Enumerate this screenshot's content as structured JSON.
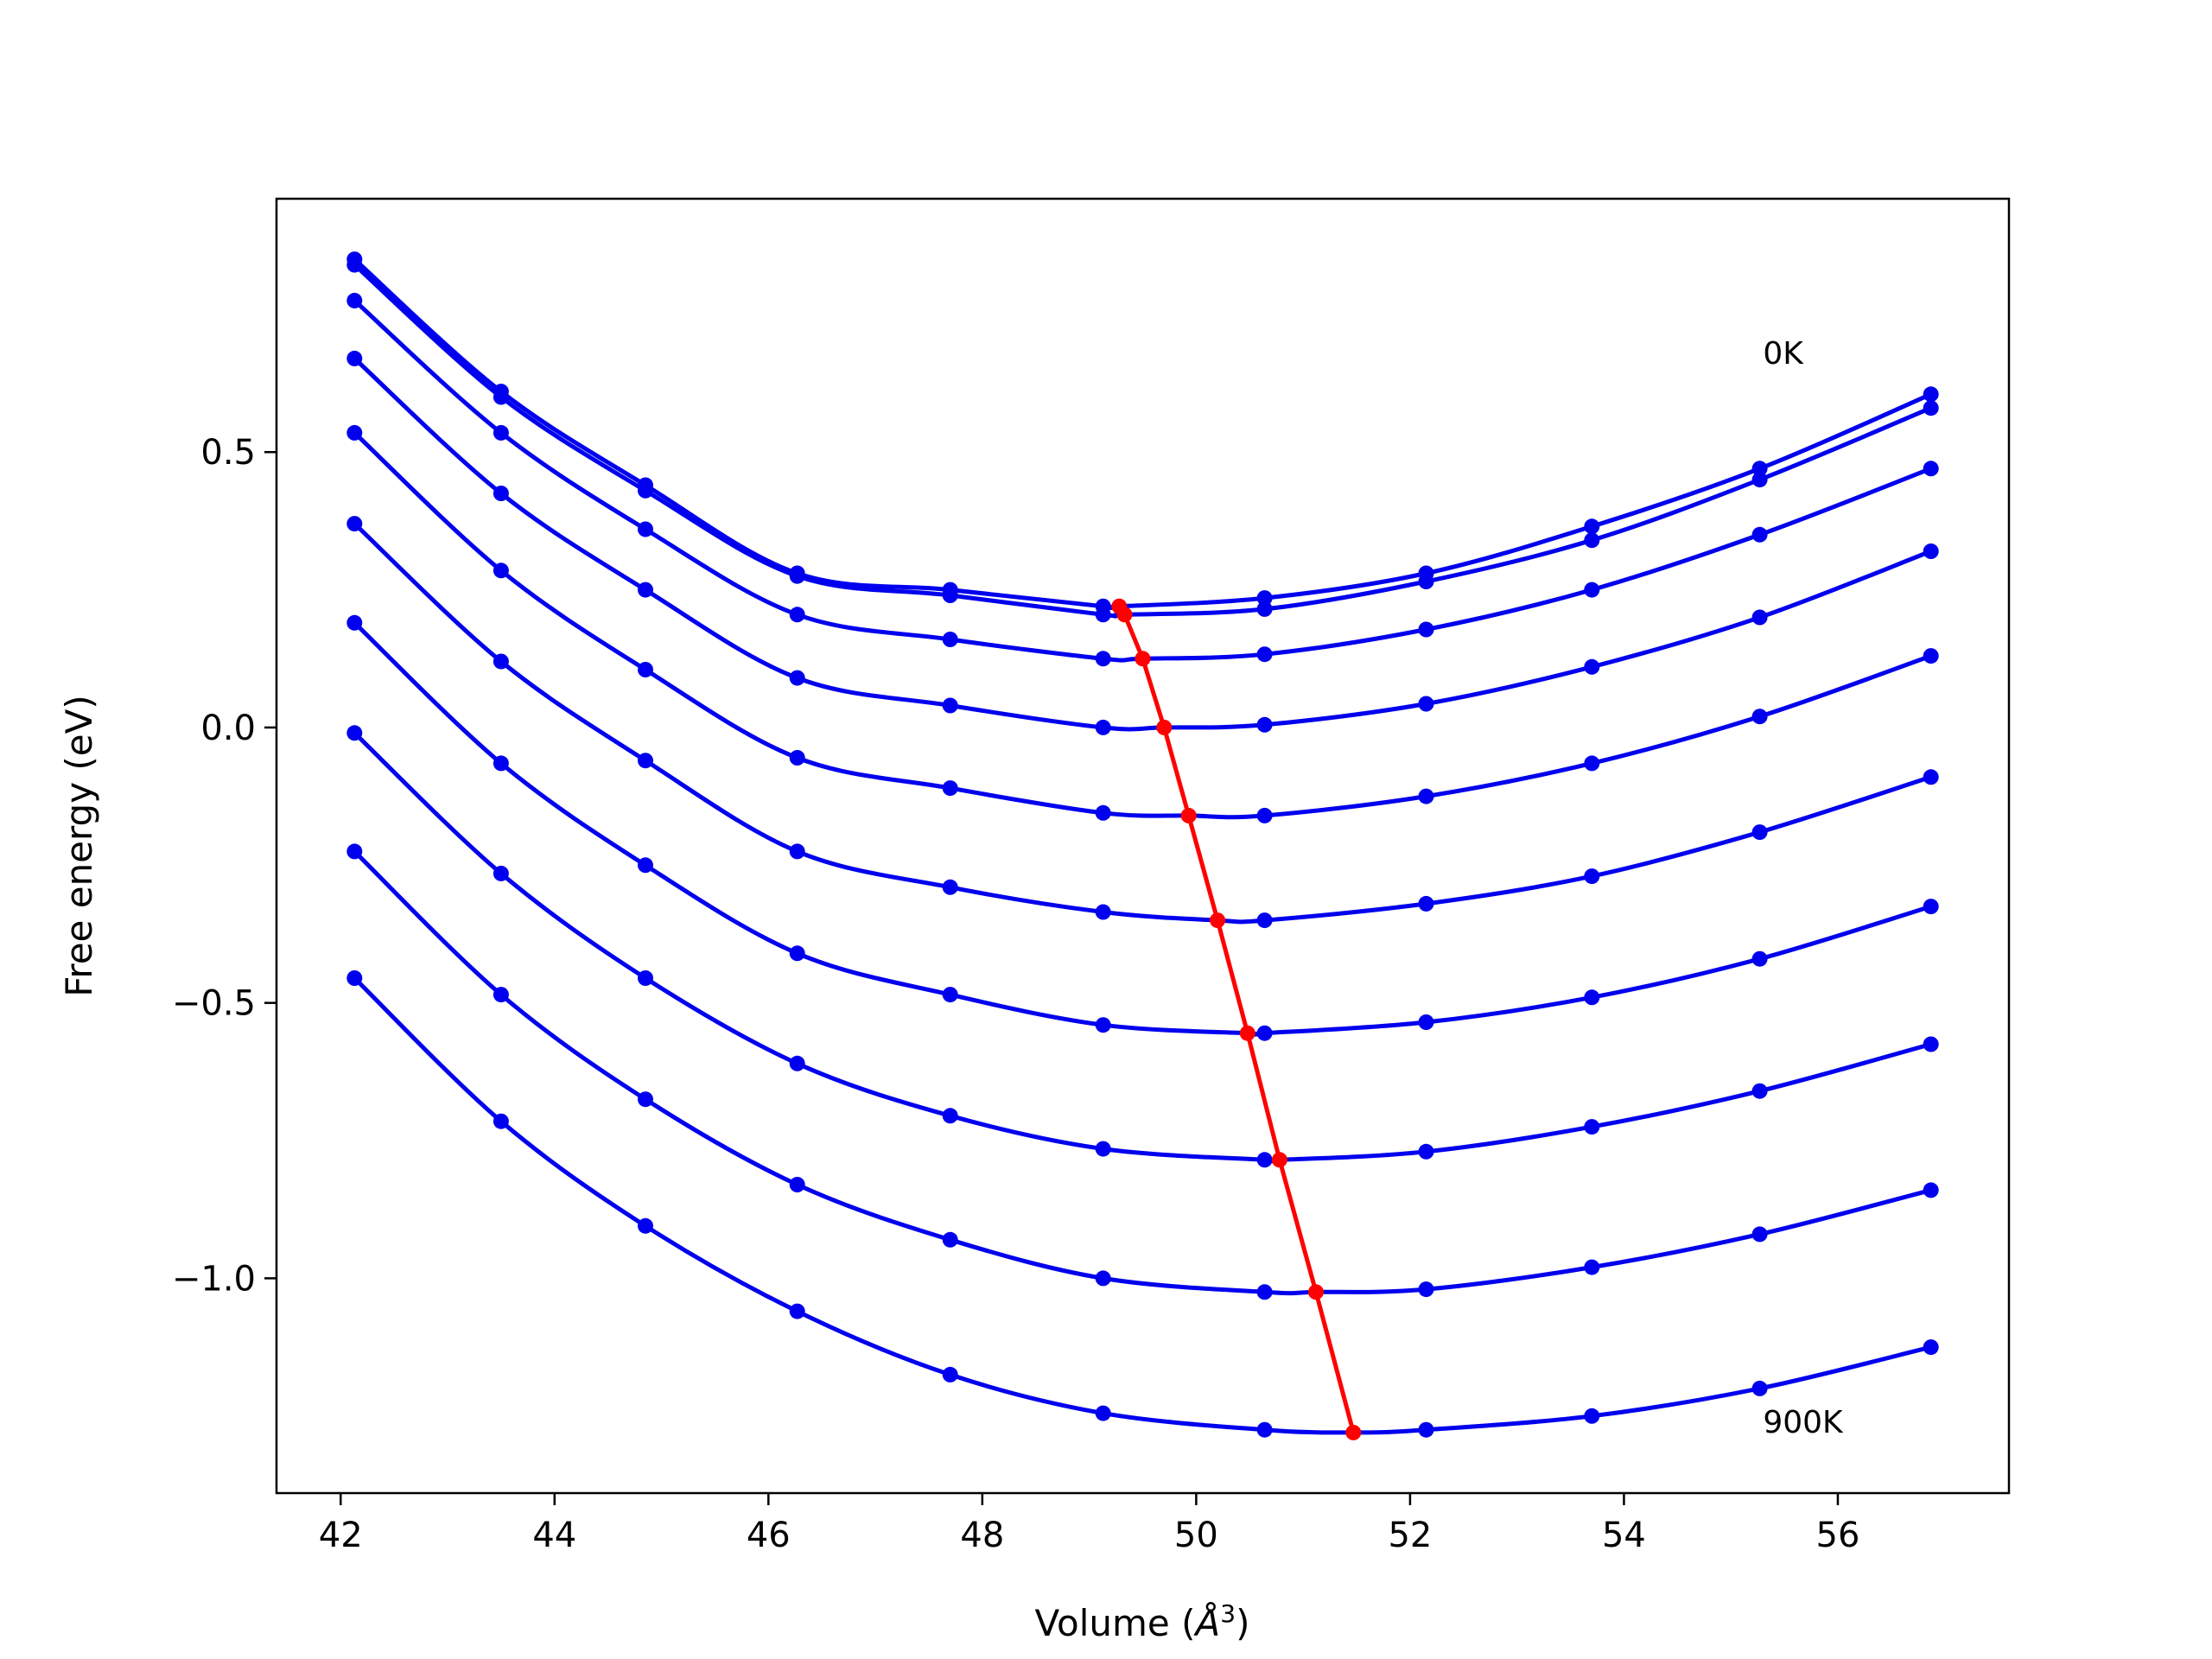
{
  "chart_data": {
    "type": "line",
    "title": "",
    "xlabel": "Volume (",
    "xlabel_unit": "Å",
    "xlabel_exp": "3",
    "xlabel_close": ")",
    "ylabel": "Free energy (eV)",
    "xlim": [
      41.4,
      57.6
    ],
    "ylim": [
      -1.39,
      0.96
    ],
    "xticks": [
      42,
      44,
      46,
      48,
      50,
      52,
      54,
      56
    ],
    "xtick_labels": [
      "42",
      "44",
      "46",
      "48",
      "50",
      "52",
      "54",
      "56"
    ],
    "yticks": [
      -1.0,
      -0.5,
      0.0,
      0.5
    ],
    "ytick_labels": [
      "−1.0",
      "−0.5",
      "0.0",
      "0.5"
    ],
    "grid": false,
    "colors": {
      "curves": "#0000ee",
      "minima": "#ff0000"
    },
    "annotations": [
      {
        "text": "0K",
        "x": 55.3,
        "y": 0.66
      },
      {
        "text": "900K",
        "x": 55.3,
        "y": -1.28
      }
    ],
    "volumes": [
      42.13,
      43.5,
      44.85,
      46.27,
      47.7,
      49.13,
      50.64,
      52.15,
      53.7,
      55.27,
      56.87
    ],
    "series": [
      {
        "energies": [
          0.85,
          0.61,
          0.44,
          0.28,
          0.25,
          0.22,
          0.235,
          0.28,
          0.365,
          0.47,
          0.605
        ],
        "min_v": 49.28,
        "min_e": 0.22
      },
      {
        "energies": [
          0.84,
          0.6,
          0.43,
          0.275,
          0.24,
          0.205,
          0.215,
          0.265,
          0.34,
          0.45,
          0.58
        ],
        "min_v": 49.33,
        "min_e": 0.205
      },
      {
        "energies": [
          0.775,
          0.535,
          0.36,
          0.205,
          0.16,
          0.125,
          0.133,
          0.178,
          0.25,
          0.35,
          0.47
        ],
        "min_v": 49.5,
        "min_e": 0.125
      },
      {
        "energies": [
          0.67,
          0.425,
          0.25,
          0.09,
          0.04,
          0.0,
          0.005,
          0.043,
          0.11,
          0.2,
          0.32
        ],
        "min_v": 49.7,
        "min_e": 0.0
      },
      {
        "energies": [
          0.535,
          0.285,
          0.105,
          -0.055,
          -0.11,
          -0.155,
          -0.16,
          -0.125,
          -0.065,
          0.02,
          0.13
        ],
        "min_v": 49.93,
        "min_e": -0.16
      },
      {
        "energies": [
          0.37,
          0.12,
          -0.06,
          -0.225,
          -0.29,
          -0.335,
          -0.35,
          -0.32,
          -0.27,
          -0.19,
          -0.09
        ],
        "min_v": 50.2,
        "min_e": -0.35
      },
      {
        "energies": [
          0.19,
          -0.065,
          -0.25,
          -0.41,
          -0.485,
          -0.54,
          -0.555,
          -0.535,
          -0.49,
          -0.42,
          -0.325
        ],
        "min_v": 50.48,
        "min_e": -0.555
      },
      {
        "energies": [
          -0.01,
          -0.265,
          -0.455,
          -0.61,
          -0.705,
          -0.765,
          -0.785,
          -0.77,
          -0.725,
          -0.66,
          -0.575
        ],
        "min_v": 50.78,
        "min_e": -0.785
      },
      {
        "energies": [
          -0.225,
          -0.485,
          -0.675,
          -0.83,
          -0.93,
          -1.0,
          -1.025,
          -1.02,
          -0.98,
          -0.92,
          -0.84
        ],
        "min_v": 51.12,
        "min_e": -1.025
      },
      {
        "energies": [
          -0.455,
          -0.715,
          -0.905,
          -1.06,
          -1.175,
          -1.245,
          -1.275,
          -1.275,
          -1.25,
          -1.2,
          -1.125
        ],
        "min_v": 51.47,
        "min_e": -1.28
      }
    ]
  }
}
